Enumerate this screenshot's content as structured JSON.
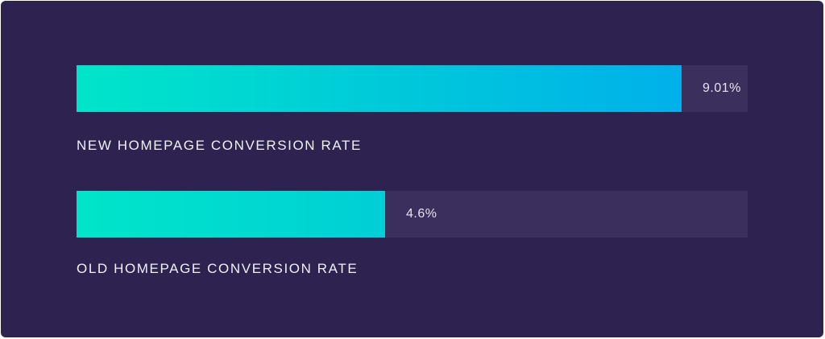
{
  "chart_data": {
    "type": "bar",
    "orientation": "horizontal",
    "categories": [
      "NEW HOMEPAGE CONVERSION RATE",
      "OLD HOMEPAGE CONVERSION RATE"
    ],
    "values": [
      9.01,
      4.6
    ],
    "value_labels": [
      "9.01%",
      "4.6%"
    ],
    "xlim": [
      0,
      10
    ],
    "grid": false,
    "legend": "none"
  },
  "colors": {
    "background": "#2e2350",
    "track": "#3a2f5d",
    "fill_start": "#00e5c9",
    "fill_end_new": "#00b0ea",
    "fill_end_old": "#00cfd6",
    "text": "#f1eff8"
  }
}
